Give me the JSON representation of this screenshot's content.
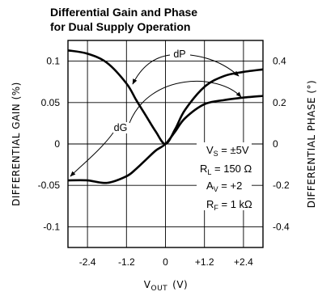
{
  "chart_data": {
    "type": "line",
    "title_lines": [
      "Differential Gain and Phase",
      "for Dual Supply Operation"
    ],
    "xlabel": {
      "main": "V",
      "sub": "OUT",
      "unit": "(V)"
    },
    "ylabel_left": "DIFFERENTIAL GAIN (%)",
    "ylabel_right": "DIFFERENTIAL PHASE (°)",
    "xlim": [
      -3.0,
      3.0
    ],
    "ylim_left": [
      -0.125,
      0.125
    ],
    "ylim_right": [
      -0.5,
      0.5
    ],
    "x_ticks": [
      {
        "value": -2.4,
        "label": "-2.4"
      },
      {
        "value": -1.2,
        "label": "-1.2"
      },
      {
        "value": 0,
        "label": "0"
      },
      {
        "value": 1.2,
        "label": "+1.2"
      },
      {
        "value": 2.4,
        "label": "+2.4"
      }
    ],
    "y_ticks_left": [
      {
        "value": 0.1,
        "label": "0.1"
      },
      {
        "value": 0.05,
        "label": "0.05"
      },
      {
        "value": 0,
        "label": "0"
      },
      {
        "value": -0.05,
        "label": "-0.05"
      },
      {
        "value": -0.1,
        "label": "-0.1"
      }
    ],
    "y_ticks_right": [
      {
        "value": 0.4,
        "label": "0.4"
      },
      {
        "value": 0.2,
        "label": "0.2"
      },
      {
        "value": 0,
        "label": "0"
      },
      {
        "value": -0.2,
        "label": "-0.2"
      },
      {
        "value": -0.4,
        "label": "-0.4"
      }
    ],
    "grid": true,
    "series": [
      {
        "name": "dP",
        "axis": "right",
        "x": [
          -3.0,
          -2.4,
          -1.8,
          -1.2,
          -0.9,
          -0.6,
          -0.3,
          0,
          0.3,
          0.6,
          1.2,
          1.8,
          2.4,
          3.0
        ],
        "y": [
          0.452,
          0.436,
          0.392,
          0.292,
          0.212,
          0.136,
          0.06,
          0.0,
          0.072,
          0.164,
          0.276,
          0.328,
          0.348,
          0.36
        ]
      },
      {
        "name": "dG",
        "axis": "left",
        "x": [
          -3.0,
          -2.4,
          -1.8,
          -1.2,
          -0.9,
          -0.6,
          -0.3,
          0,
          0.3,
          0.6,
          1.2,
          1.8,
          2.4,
          3.0
        ],
        "y": [
          -0.044,
          -0.044,
          -0.047,
          -0.039,
          -0.03,
          -0.019,
          -0.008,
          0.0,
          0.015,
          0.031,
          0.048,
          0.053,
          0.056,
          0.058
        ]
      }
    ],
    "annotations": [
      {
        "text": "dP",
        "series": "dP"
      },
      {
        "text": "dG",
        "series": "dG"
      }
    ],
    "conditions": [
      {
        "main": "V",
        "sub": "S",
        "rest": " = ±5V"
      },
      {
        "main": "R",
        "sub": "L",
        "rest": " = 150 Ω"
      },
      {
        "main": "A",
        "sub": "V",
        "rest": " = +2"
      },
      {
        "main": "R",
        "sub": "F",
        "rest": " = 1 kΩ"
      }
    ]
  }
}
